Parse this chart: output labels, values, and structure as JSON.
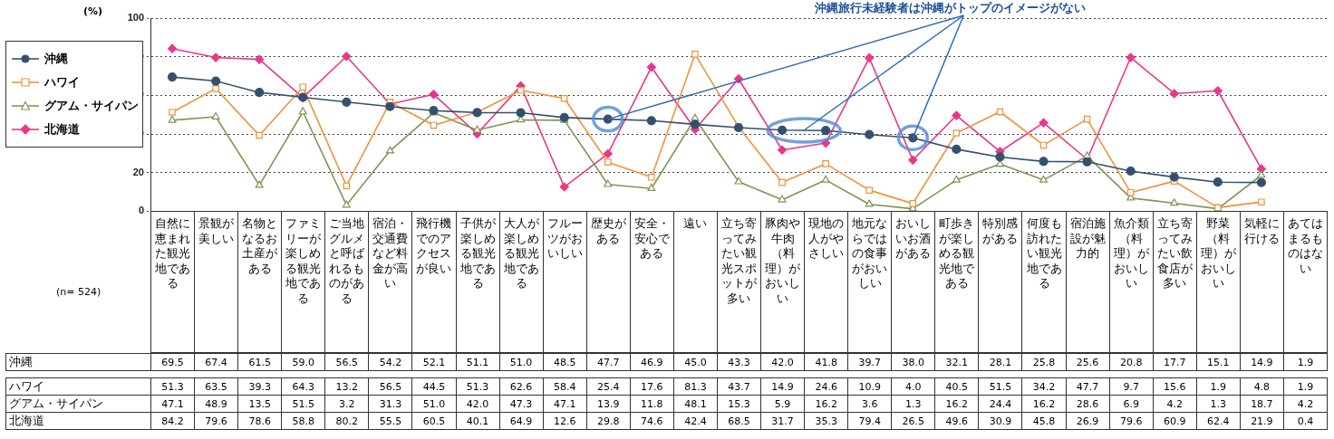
{
  "chart_data": {
    "type": "line",
    "annotations": [
      {
        "text": "沖縄旅行未経験者は沖縄がトップのイメージがない",
        "x": "歴史がある",
        "y": 47.7
      },
      "(n= 524)"
    ],
    "ylabel": "(%)",
    "categories": [
      "自然に恵まれた観光地である",
      "景観が美しい",
      "名物となるお土産がある",
      "ファミリーが楽しめる観光地である",
      "ご当地グルメと呼ばれるものがある",
      "宿泊・交通費など料金が高い",
      "飛行機でのアクセスが良い",
      "子供が楽しめる観光地である",
      "大人が楽しめる観光地である",
      "フルーツがおいしい",
      "歴史がある",
      "安全・安心である",
      "遠い",
      "立ち寄ってみたい観光スポットが多い",
      "豚肉や牛肉（料理）がおいしい",
      "現地の人がやさしい",
      "地元ならではの食事がおいしい",
      "おいしいお酒がある",
      "町歩きが楽しめる観光地である",
      "特別感がある",
      "何度も訪れたい観光地である",
      "宿泊施設が魅力的",
      "魚介類（料理）がおいしい",
      "立ち寄ってみたい飲食店が多い",
      "野菜（料理）がおいしい",
      "気軽に行ける",
      "あてはまるものはない"
    ],
    "ylim": [
      0,
      100
    ],
    "yticks": [
      0,
      20,
      40,
      60,
      80,
      100
    ],
    "grid": "y",
    "legend": "left",
    "series": [
      {
        "name": "沖縄",
        "color": "#34506f",
        "marker": "circle",
        "values": [
          69.5,
          67.4,
          61.5,
          59.0,
          56.5,
          54.2,
          52.1,
          51.1,
          51.0,
          48.5,
          47.7,
          46.9,
          45.0,
          43.3,
          42.0,
          41.8,
          39.7,
          38.0,
          32.1,
          28.1,
          25.8,
          25.6,
          20.8,
          17.7,
          15.1,
          14.9,
          null
        ],
        "value_labels": [
          "69.5",
          "67.4",
          "61.5",
          "59.0",
          "56.5",
          "54.2",
          "52.1",
          "51.1",
          "51.0",
          "48.5",
          "47.7",
          "46.9",
          "45.0",
          "43.3",
          "42.0",
          "41.8",
          "39.7",
          "38.0",
          "32.1",
          "28.1",
          "25.8",
          "25.6",
          "20.8",
          "17.7",
          "15.1",
          "14.9",
          "1.9"
        ]
      },
      {
        "name": "ハワイ",
        "color": "#f0913a",
        "marker": "square",
        "values": [
          51.3,
          63.5,
          39.3,
          64.3,
          13.2,
          56.5,
          44.5,
          51.3,
          62.6,
          58.4,
          25.4,
          17.6,
          81.3,
          43.7,
          14.9,
          24.6,
          10.9,
          4.0,
          40.5,
          51.5,
          34.2,
          47.7,
          9.7,
          15.6,
          1.9,
          4.8,
          null
        ],
        "value_labels": [
          "51.3",
          "63.5",
          "39.3",
          "64.3",
          "13.2",
          "56.5",
          "44.5",
          "51.3",
          "62.6",
          "58.4",
          "25.4",
          "17.6",
          "81.3",
          "43.7",
          "14.9",
          "24.6",
          "10.9",
          "4.0",
          "40.5",
          "51.5",
          "34.2",
          "47.7",
          "9.7",
          "15.6",
          "1.9",
          "4.8",
          "1.9"
        ]
      },
      {
        "name": "グアム・サイパン",
        "color": "#7f9455",
        "marker": "triangle",
        "values": [
          47.1,
          48.9,
          13.5,
          51.5,
          3.2,
          31.3,
          51.0,
          42.0,
          47.3,
          47.1,
          13.9,
          11.8,
          48.1,
          15.3,
          5.9,
          16.2,
          3.6,
          1.3,
          16.2,
          24.4,
          16.2,
          28.6,
          6.9,
          4.2,
          1.3,
          18.7,
          null
        ],
        "value_labels": [
          "47.1",
          "48.9",
          "13.5",
          "51.5",
          "3.2",
          "31.3",
          "51.0",
          "42.0",
          "47.3",
          "47.1",
          "13.9",
          "11.8",
          "48.1",
          "15.3",
          "5.9",
          "16.2",
          "3.6",
          "1.3",
          "16.2",
          "24.4",
          "16.2",
          "28.6",
          "6.9",
          "4.2",
          "1.3",
          "18.7",
          "4.2"
        ]
      },
      {
        "name": "北海道",
        "color": "#e8388a",
        "marker": "diamond",
        "values": [
          84.2,
          79.6,
          78.6,
          58.8,
          80.2,
          55.5,
          60.5,
          40.1,
          64.9,
          12.6,
          29.8,
          74.6,
          42.4,
          68.5,
          31.7,
          35.3,
          79.4,
          26.5,
          49.6,
          30.9,
          45.8,
          26.9,
          79.6,
          60.9,
          62.4,
          21.9,
          null
        ],
        "value_labels": [
          "84.2",
          "79.6",
          "78.6",
          "58.8",
          "80.2",
          "55.5",
          "60.5",
          "40.1",
          "64.9",
          "12.6",
          "29.8",
          "74.6",
          "42.4",
          "68.5",
          "31.7",
          "35.3",
          "79.4",
          "26.5",
          "49.6",
          "30.9",
          "45.8",
          "26.9",
          "79.6",
          "60.9",
          "62.4",
          "21.9",
          "0.4"
        ]
      }
    ]
  }
}
